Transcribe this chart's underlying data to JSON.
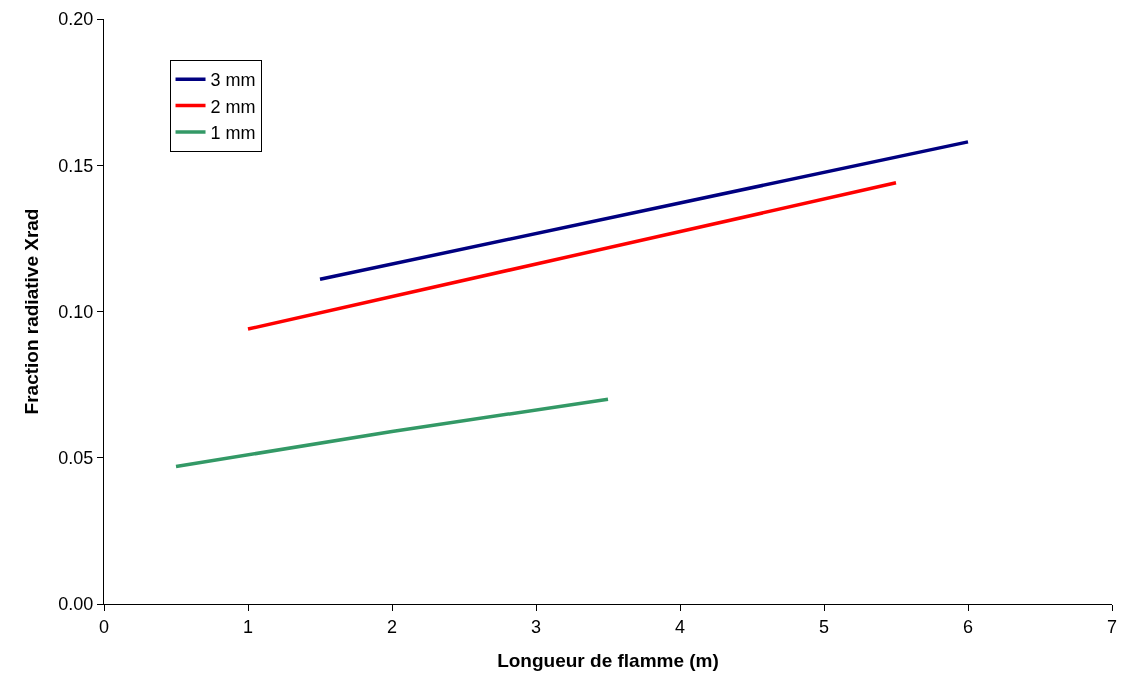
{
  "chart_data": {
    "type": "line",
    "xlabel": "Longueur de flamme (m)",
    "ylabel": "Fraction radiative Xrad",
    "xlim": [
      0,
      7
    ],
    "xticks": [
      0,
      1,
      2,
      3,
      4,
      5,
      6,
      7
    ],
    "ylim": [
      0,
      0.2
    ],
    "yticks": [
      {
        "value": 0,
        "label": "0.00"
      },
      {
        "value": 0.05,
        "label": "0.05"
      },
      {
        "value": 0.1,
        "label": "0.10"
      },
      {
        "value": 0.15,
        "label": "0.15"
      },
      {
        "value": 0.2,
        "label": "0.20"
      }
    ],
    "grid": false,
    "legend": "top left",
    "marker": "none",
    "line_style": "solid",
    "series": [
      {
        "name": "3 mm",
        "color": "#000080",
        "x": [
          1.5,
          6
        ],
        "values": [
          0.111,
          0.158
        ]
      },
      {
        "name": "2 mm",
        "color": "#ff0000",
        "x": [
          1,
          5.5
        ],
        "values": [
          0.094,
          0.144
        ]
      },
      {
        "name": "1 mm",
        "color": "#339966",
        "x": [
          0.5,
          2,
          3.5
        ],
        "values": [
          0.047,
          0.059,
          0.07
        ]
      }
    ]
  }
}
